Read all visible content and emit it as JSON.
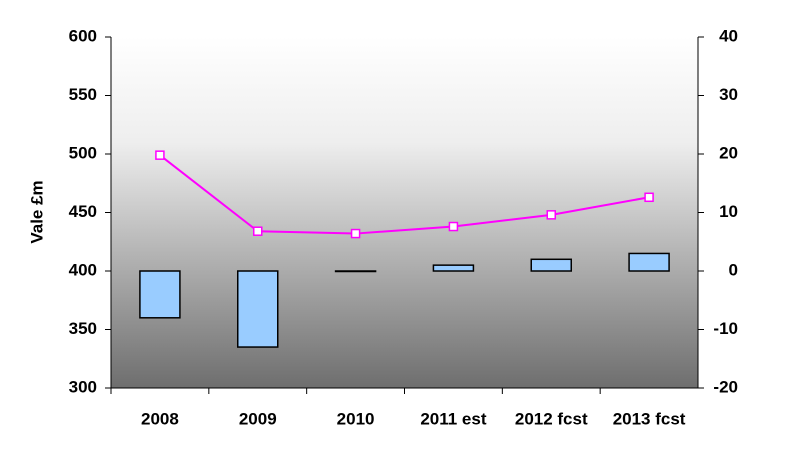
{
  "chart_data": {
    "type": "bar-line",
    "y_label": "Vale £m",
    "categories": [
      "2008",
      "2009",
      "2010",
      "2011 est",
      "2012 fcst",
      "2013 fcst"
    ],
    "series": [
      {
        "type": "bar",
        "axis": "y2",
        "color": "#99ccff",
        "values": [
          -8,
          -13,
          0,
          1,
          2,
          3
        ]
      },
      {
        "type": "line",
        "axis": "y",
        "color": "#ff00ff",
        "values": [
          499,
          434,
          432,
          438,
          448,
          463
        ]
      }
    ],
    "ylim": [
      300,
      600
    ],
    "yticks": [
      300,
      350,
      400,
      450,
      500,
      550,
      600
    ],
    "y2lim": [
      -20,
      40
    ],
    "y2ticks": [
      -20,
      -10,
      0,
      10,
      20,
      30,
      40
    ]
  }
}
